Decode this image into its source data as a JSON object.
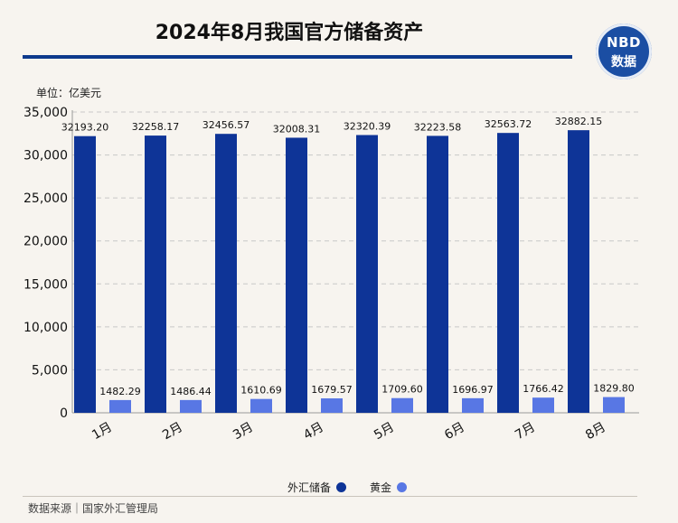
{
  "title": "2024年8月我国官方储备资产",
  "logo": {
    "line1": "NBD",
    "line2": "数据"
  },
  "unit": "单位：亿美元",
  "source": "数据来源｜国家外汇管理局",
  "colors": {
    "reserves": "#0e3497",
    "gold": "#5877e4",
    "title_rule": "#0d3a8c"
  },
  "chart_data": {
    "type": "bar",
    "categories": [
      "1月",
      "2月",
      "3月",
      "4月",
      "5月",
      "6月",
      "7月",
      "8月"
    ],
    "series": [
      {
        "name": "外汇储备",
        "values": [
          32193.2,
          32258.17,
          32456.57,
          32008.31,
          32320.39,
          32223.58,
          32563.72,
          32882.15
        ],
        "labels": [
          "32193.20",
          "32258.17",
          "32456.57",
          "32008.31",
          "32320.39",
          "32223.58",
          "32563.72",
          "32882.15"
        ]
      },
      {
        "name": "黄金",
        "values": [
          1482.29,
          1486.44,
          1610.69,
          1679.57,
          1709.6,
          1696.97,
          1766.42,
          1829.8
        ],
        "labels": [
          "1482.29",
          "1486.44",
          "1610.69",
          "1679.57",
          "1709.60",
          "1696.97",
          "1766.42",
          "1829.80"
        ]
      }
    ],
    "yticks": [
      "0",
      "5,000",
      "10,000",
      "15,000",
      "20,000",
      "25,000",
      "30,000",
      "35,000"
    ],
    "ytick_values": [
      0,
      5000,
      10000,
      15000,
      20000,
      25000,
      30000,
      35000
    ],
    "ylim": [
      0,
      35000
    ],
    "grid": true,
    "legend_position": "bottom"
  }
}
